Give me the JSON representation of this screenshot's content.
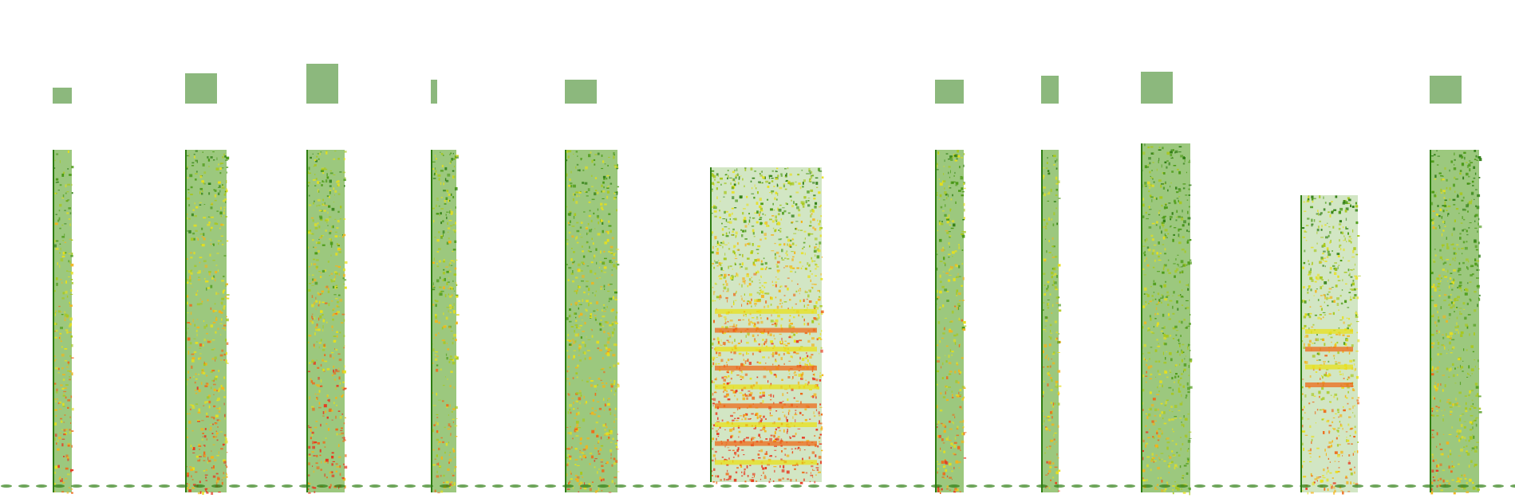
{
  "image": {
    "kind": "spectrogram-collage",
    "background": "#ffffff",
    "colormap": [
      "#2e7d12",
      "#4a9a14",
      "#a8c81c",
      "#e8e01a",
      "#f4b41a",
      "#ee6a1a",
      "#e8361e"
    ]
  },
  "calls": [
    {
      "id": "call-01",
      "intensity": 0.55
    },
    {
      "id": "call-02",
      "intensity": 0.62
    },
    {
      "id": "call-03",
      "intensity": 0.7
    },
    {
      "id": "call-04",
      "intensity": 0.45
    },
    {
      "id": "call-05",
      "intensity": 0.5
    },
    {
      "id": "call-06",
      "intensity": 0.8
    },
    {
      "id": "call-07",
      "intensity": 0.55
    },
    {
      "id": "call-08",
      "intensity": 0.5
    },
    {
      "id": "call-09",
      "intensity": 0.58
    },
    {
      "id": "call-10",
      "intensity": 0.5
    },
    {
      "id": "call-11",
      "intensity": 0.62
    }
  ]
}
